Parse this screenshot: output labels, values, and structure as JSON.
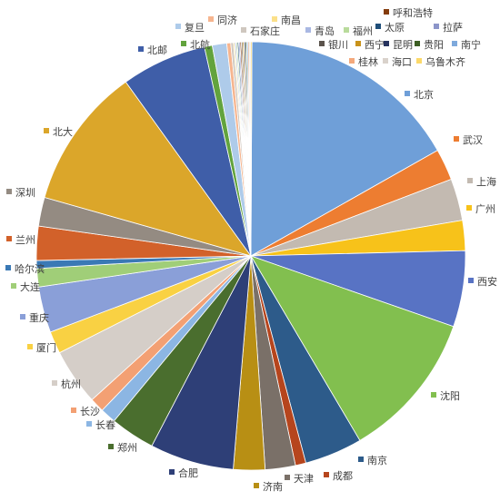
{
  "chart_data": {
    "type": "pie",
    "title": "",
    "legend": "none",
    "labels_position": "outside-end",
    "slices": [
      {
        "label": "北京",
        "value": 16.9,
        "color": "#6f9fd8"
      },
      {
        "label": "武汉",
        "value": 2.4,
        "color": "#ed7d31"
      },
      {
        "label": "上海",
        "value": 3.2,
        "color": "#c3bab1"
      },
      {
        "label": "广州",
        "value": 2.3,
        "color": "#f7c21a"
      },
      {
        "label": "西安",
        "value": 5.8,
        "color": "#5873c4"
      },
      {
        "label": "沈阳",
        "value": 11.3,
        "color": "#82bf4f"
      },
      {
        "label": "南京",
        "value": 4.4,
        "color": "#2d5b8a"
      },
      {
        "label": "成都",
        "value": 0.8,
        "color": "#b6451d"
      },
      {
        "label": "天津",
        "value": 2.3,
        "color": "#7a7068"
      },
      {
        "label": "济南",
        "value": 2.4,
        "color": "#b88f14"
      },
      {
        "label": "合肥",
        "value": 6.4,
        "color": "#2e3f77"
      },
      {
        "label": "郑州",
        "value": 3.4,
        "color": "#4a6e2e"
      },
      {
        "label": "长春",
        "value": 1.2,
        "color": "#8cb6e3"
      },
      {
        "label": "长沙",
        "value": 1.1,
        "color": "#f3a073"
      },
      {
        "label": "杭州",
        "value": 4.3,
        "color": "#d5cec8"
      },
      {
        "label": "厦门",
        "value": 1.7,
        "color": "#f9d143"
      },
      {
        "label": "重庆",
        "value": 3.5,
        "color": "#8a9fd8"
      },
      {
        "label": "大连",
        "value": 1.4,
        "color": "#a0ce78"
      },
      {
        "label": "哈尔滨",
        "value": 0.6,
        "color": "#3a79b5"
      },
      {
        "label": "兰州",
        "value": 2.6,
        "color": "#d2612a"
      },
      {
        "label": "深圳",
        "value": 2.2,
        "color": "#948b82"
      },
      {
        "label": "北大",
        "value": 10.8,
        "color": "#dba62a"
      },
      {
        "label": "北邮",
        "value": 6.5,
        "color": "#3f5ea8"
      },
      {
        "label": "北航",
        "value": 0.6,
        "color": "#62a33d"
      },
      {
        "label": "复旦",
        "value": 1.1,
        "color": "#aecbea"
      },
      {
        "label": "同济",
        "value": 0.3,
        "color": "#f6b58f"
      },
      {
        "label": "石家庄",
        "value": 0.2,
        "color": "#cfc7bf"
      },
      {
        "label": "南昌",
        "value": 0.1,
        "color": "#fbe08a"
      },
      {
        "label": "青岛",
        "value": 0.1,
        "color": "#a9b8e3"
      },
      {
        "label": "福州",
        "value": 0.1,
        "color": "#b9db9c"
      },
      {
        "label": "太原",
        "value": 0.1,
        "color": "#1f4e79"
      },
      {
        "label": "拉萨",
        "value": 0.1,
        "color": "#8c95c9"
      },
      {
        "label": "呼和浩特",
        "value": 0.1,
        "color": "#843c0c"
      },
      {
        "label": "银川",
        "value": 0.1,
        "color": "#5b534c"
      },
      {
        "label": "西宁",
        "value": 0.1,
        "color": "#c8921a"
      },
      {
        "label": "昆明",
        "value": 0.1,
        "color": "#26325e"
      },
      {
        "label": "贵阳",
        "value": 0.1,
        "color": "#3d5e24"
      },
      {
        "label": "南宁",
        "value": 0.1,
        "color": "#7ea9dc"
      },
      {
        "label": "桂林",
        "value": 0.1,
        "color": "#f4a97c"
      },
      {
        "label": "海口",
        "value": 0.1,
        "color": "#d9d2cb"
      },
      {
        "label": "乌鲁木齐",
        "value": 0.1,
        "color": "#fcd96a"
      }
    ]
  }
}
